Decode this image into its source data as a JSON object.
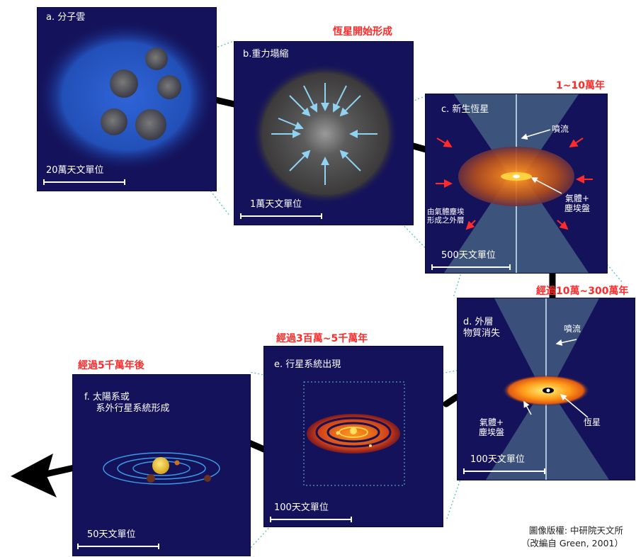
{
  "stages": {
    "b": "恆星開始形成",
    "c": "1~10萬年",
    "d": "經過10萬~300萬年",
    "e": "經過3百萬~5千萬年",
    "f": "經過5千萬年後"
  },
  "panels": {
    "a": {
      "title": "a. 分子雲",
      "scale": "20萬天文單位"
    },
    "b": {
      "title": "b.重力塌縮",
      "scale": "1萬天文單位"
    },
    "c": {
      "title": "c. 新生恆星",
      "scale": "500天文單位",
      "labels": {
        "jet": "噴流",
        "disk": "氣體+\n塵埃盤",
        "envelope": "由氣體塵埃\n形成之外層"
      }
    },
    "d": {
      "title": "d. 外層\n物質消失",
      "scale": "100天文單位",
      "labels": {
        "jet": "噴流",
        "disk": "氣體+\n塵埃盤",
        "star": "恆星"
      }
    },
    "e": {
      "title": "e. 行星系統出現",
      "scale": "100天文單位"
    },
    "f": {
      "title": "f. 太陽系或\n    系外行星系統形成",
      "scale": "50天文單位"
    }
  },
  "credit": "圖像版權: 中研院天文所\n（改編自 Green, 2001）",
  "colors": {
    "panel_bg": "#14125a",
    "stage_text": "#ff2a2a",
    "flow_arrow": "#000000",
    "guide_line": "#5fc6c0"
  }
}
